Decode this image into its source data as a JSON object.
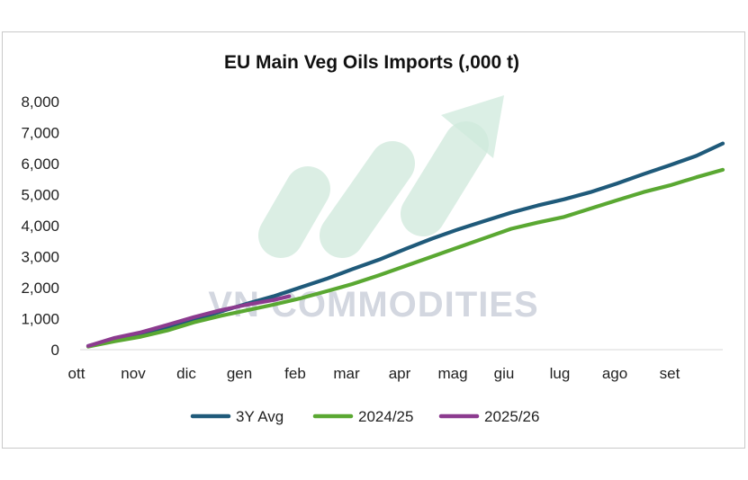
{
  "chart_data": {
    "type": "line",
    "title": "EU Main Veg Oils Imports (,000 t)",
    "xlabel": "",
    "ylabel": "",
    "categories": [
      "ott",
      "nov",
      "dic",
      "gen",
      "feb",
      "mar",
      "apr",
      "mag",
      "giu",
      "lug",
      "ago",
      "set"
    ],
    "y_tick_labels": [
      "0",
      "1,000",
      "2,000",
      "3,000",
      "4,000",
      "5,000",
      "6,000",
      "7,000",
      "8,000"
    ],
    "ylim": [
      0,
      8000
    ],
    "xlim": [
      0,
      12
    ],
    "grid": false,
    "legend_position": "bottom",
    "series": [
      {
        "name": "3Y Avg",
        "color": "#1f5a7a",
        "points": [
          [
            0,
            120
          ],
          [
            0.5,
            320
          ],
          [
            1,
            480
          ],
          [
            1.5,
            720
          ],
          [
            2,
            960
          ],
          [
            2.5,
            1230
          ],
          [
            3,
            1480
          ],
          [
            3.5,
            1720
          ],
          [
            4,
            2000
          ],
          [
            4.5,
            2280
          ],
          [
            5,
            2600
          ],
          [
            5.5,
            2900
          ],
          [
            6,
            3250
          ],
          [
            6.5,
            3580
          ],
          [
            7,
            3880
          ],
          [
            7.5,
            4150
          ],
          [
            8,
            4420
          ],
          [
            8.5,
            4650
          ],
          [
            9,
            4850
          ],
          [
            9.5,
            5080
          ],
          [
            10,
            5360
          ],
          [
            10.5,
            5660
          ],
          [
            11,
            5950
          ],
          [
            11.5,
            6250
          ],
          [
            12,
            6650
          ]
        ]
      },
      {
        "name": "2024/25",
        "color": "#5aa832",
        "points": [
          [
            0,
            100
          ],
          [
            0.5,
            270
          ],
          [
            1,
            420
          ],
          [
            1.5,
            620
          ],
          [
            2,
            880
          ],
          [
            2.5,
            1090
          ],
          [
            3,
            1270
          ],
          [
            3.5,
            1450
          ],
          [
            4,
            1650
          ],
          [
            4.5,
            1880
          ],
          [
            5,
            2120
          ],
          [
            5.5,
            2400
          ],
          [
            6,
            2700
          ],
          [
            6.5,
            3000
          ],
          [
            7,
            3300
          ],
          [
            7.5,
            3600
          ],
          [
            8,
            3900
          ],
          [
            8.5,
            4100
          ],
          [
            9,
            4280
          ],
          [
            9.5,
            4550
          ],
          [
            10,
            4820
          ],
          [
            10.5,
            5080
          ],
          [
            11,
            5300
          ],
          [
            11.5,
            5560
          ],
          [
            12,
            5800
          ]
        ]
      },
      {
        "name": "2025/26",
        "color": "#8c3b8f",
        "points": [
          [
            0,
            120
          ],
          [
            0.5,
            380
          ],
          [
            1,
            560
          ],
          [
            1.5,
            800
          ],
          [
            2,
            1050
          ],
          [
            2.5,
            1270
          ],
          [
            3,
            1450
          ],
          [
            3.5,
            1600
          ],
          [
            3.8,
            1720
          ]
        ]
      }
    ],
    "watermark": "VN COMMODITIES"
  }
}
